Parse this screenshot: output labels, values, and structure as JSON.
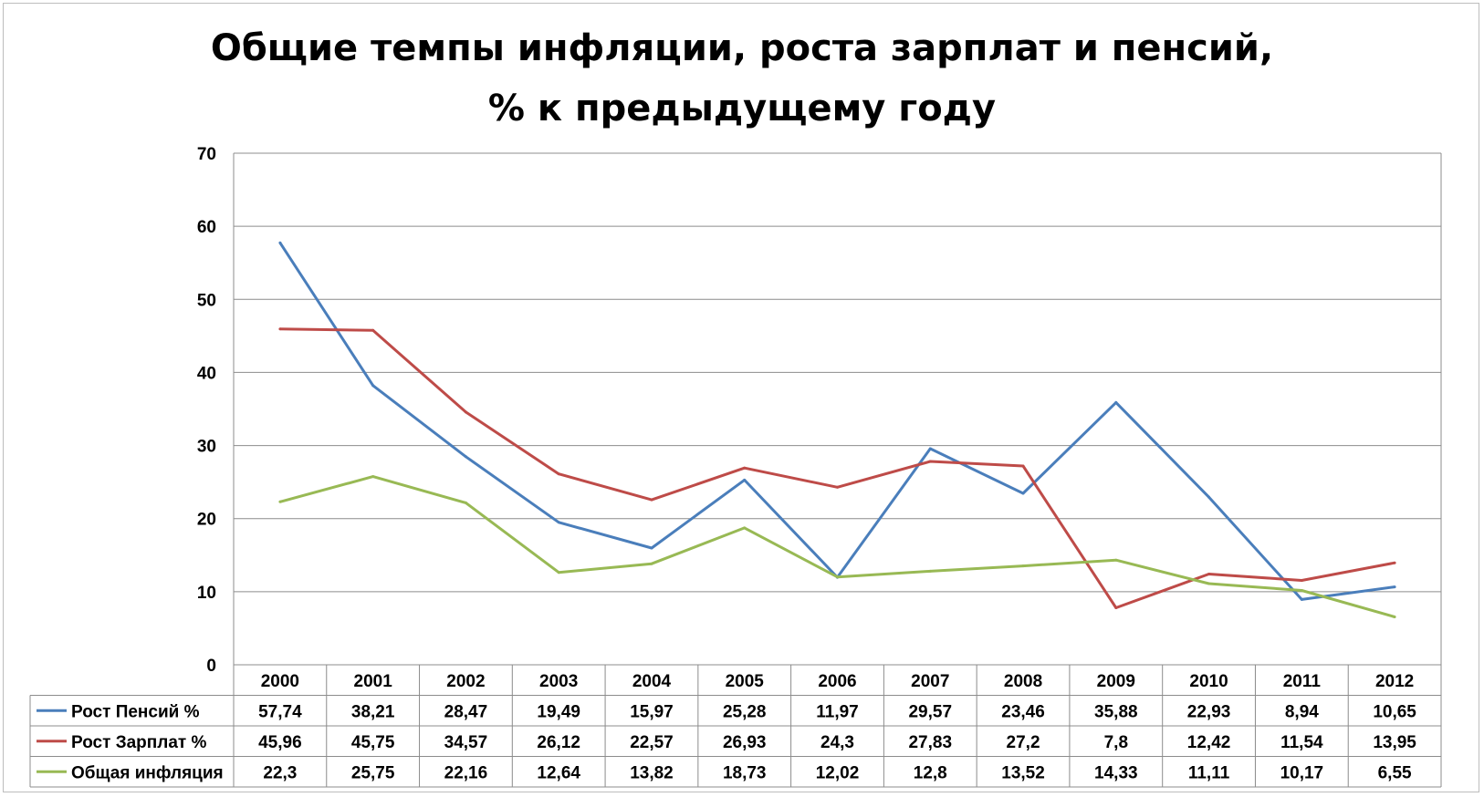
{
  "chart_data": {
    "type": "line",
    "title_line1": "Общие темпы инфляции, роста зарплат и пенсий,",
    "title_line2": "% к предыдущему году",
    "categories": [
      "2000",
      "2001",
      "2002",
      "2003",
      "2004",
      "2005",
      "2006",
      "2007",
      "2008",
      "2009",
      "2010",
      "2011",
      "2012"
    ],
    "ylim": [
      0,
      70
    ],
    "yticks": [
      "0",
      "10",
      "20",
      "30",
      "40",
      "50",
      "60",
      "70"
    ],
    "grid": true,
    "legend_placement": "data-table",
    "series": [
      {
        "name": "Рост Пенсий %",
        "color": "#4a7ebb",
        "values": [
          57.74,
          38.21,
          28.47,
          19.49,
          15.97,
          25.28,
          11.97,
          29.57,
          23.46,
          35.88,
          22.93,
          8.94,
          10.65
        ],
        "labels": [
          "57,74",
          "38,21",
          "28,47",
          "19,49",
          "15,97",
          "25,28",
          "11,97",
          "29,57",
          "23,46",
          "35,88",
          "22,93",
          "8,94",
          "10,65"
        ]
      },
      {
        "name": "Рост Зарплат %",
        "color": "#be4b48",
        "values": [
          45.96,
          45.75,
          34.57,
          26.12,
          22.57,
          26.93,
          24.3,
          27.83,
          27.2,
          7.8,
          12.42,
          11.54,
          13.95
        ],
        "labels": [
          "45,96",
          "45,75",
          "34,57",
          "26,12",
          "22,57",
          "26,93",
          "24,3",
          "27,83",
          "27,2",
          "7,8",
          "12,42",
          "11,54",
          "13,95"
        ]
      },
      {
        "name": "Общая инфляция",
        "color": "#98b954",
        "values": [
          22.3,
          25.75,
          22.16,
          12.64,
          13.82,
          18.73,
          12.02,
          12.8,
          13.52,
          14.33,
          11.11,
          10.17,
          6.55
        ],
        "labels": [
          "22,3",
          "25,75",
          "22,16",
          "12,64",
          "13,82",
          "18,73",
          "12,02",
          "12,8",
          "13,52",
          "14,33",
          "11,11",
          "10,17",
          "6,55"
        ]
      }
    ]
  }
}
